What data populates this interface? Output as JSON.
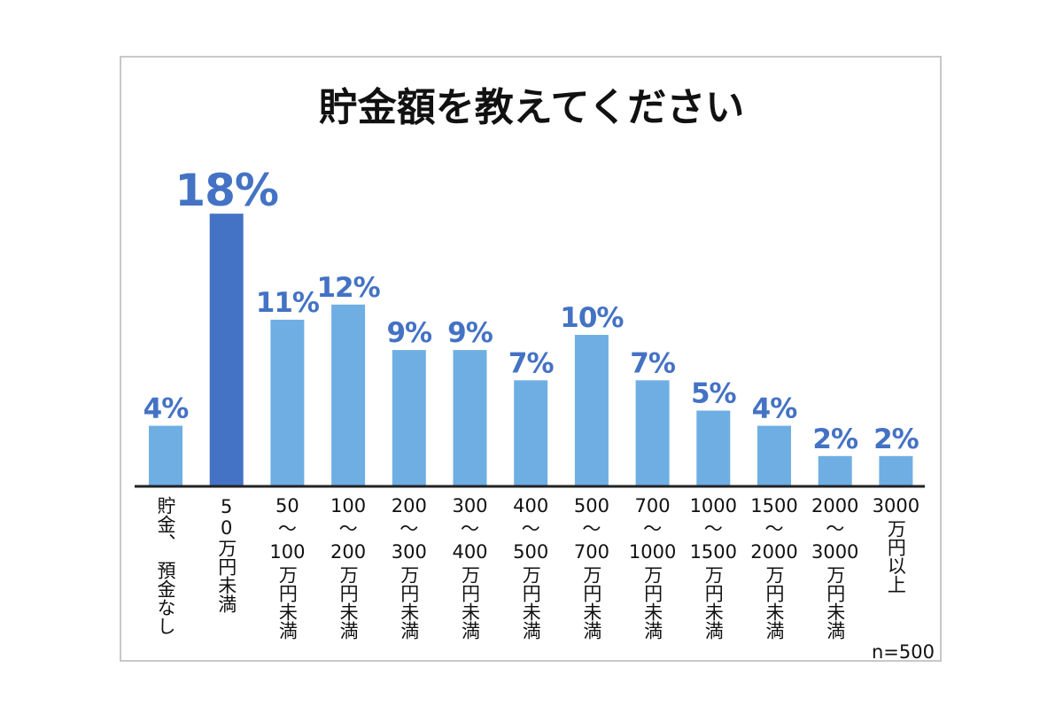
{
  "chart_data": {
    "type": "bar",
    "title": "貯金額を教えてください",
    "note": "n=500",
    "unit": "%",
    "categories": [
      [
        "貯金、",
        "預金なし"
      ],
      [
        "50万円未満"
      ],
      [
        "50",
        "～",
        "100",
        "万円未満"
      ],
      [
        "100",
        "～",
        "200",
        "万円未満"
      ],
      [
        "200",
        "～",
        "300",
        "万円未満"
      ],
      [
        "300",
        "～",
        "400",
        "万円未満"
      ],
      [
        "400",
        "～",
        "500",
        "万円未満"
      ],
      [
        "500",
        "～",
        "700",
        "万円未満"
      ],
      [
        "700",
        "～",
        "1000",
        "万円未満"
      ],
      [
        "1000",
        "～",
        "1500",
        "万円未満"
      ],
      [
        "1500",
        "～",
        "2000",
        "万円未満"
      ],
      [
        "2000",
        "～",
        "3000",
        "万円未満"
      ],
      [
        "3000",
        "万円以上"
      ]
    ],
    "values": [
      4,
      18,
      11,
      12,
      9,
      9,
      7,
      10,
      7,
      5,
      4,
      2,
      2
    ],
    "labels": [
      "4%",
      "18%",
      "11%",
      "12%",
      "9%",
      "9%",
      "7%",
      "10%",
      "7%",
      "5%",
      "4%",
      "2%",
      "2%"
    ],
    "highlight_index": 1,
    "colors": {
      "bar": "#6faee3",
      "highlight": "#4472c4",
      "label": "#4472c4",
      "axis": "#222222"
    }
  }
}
